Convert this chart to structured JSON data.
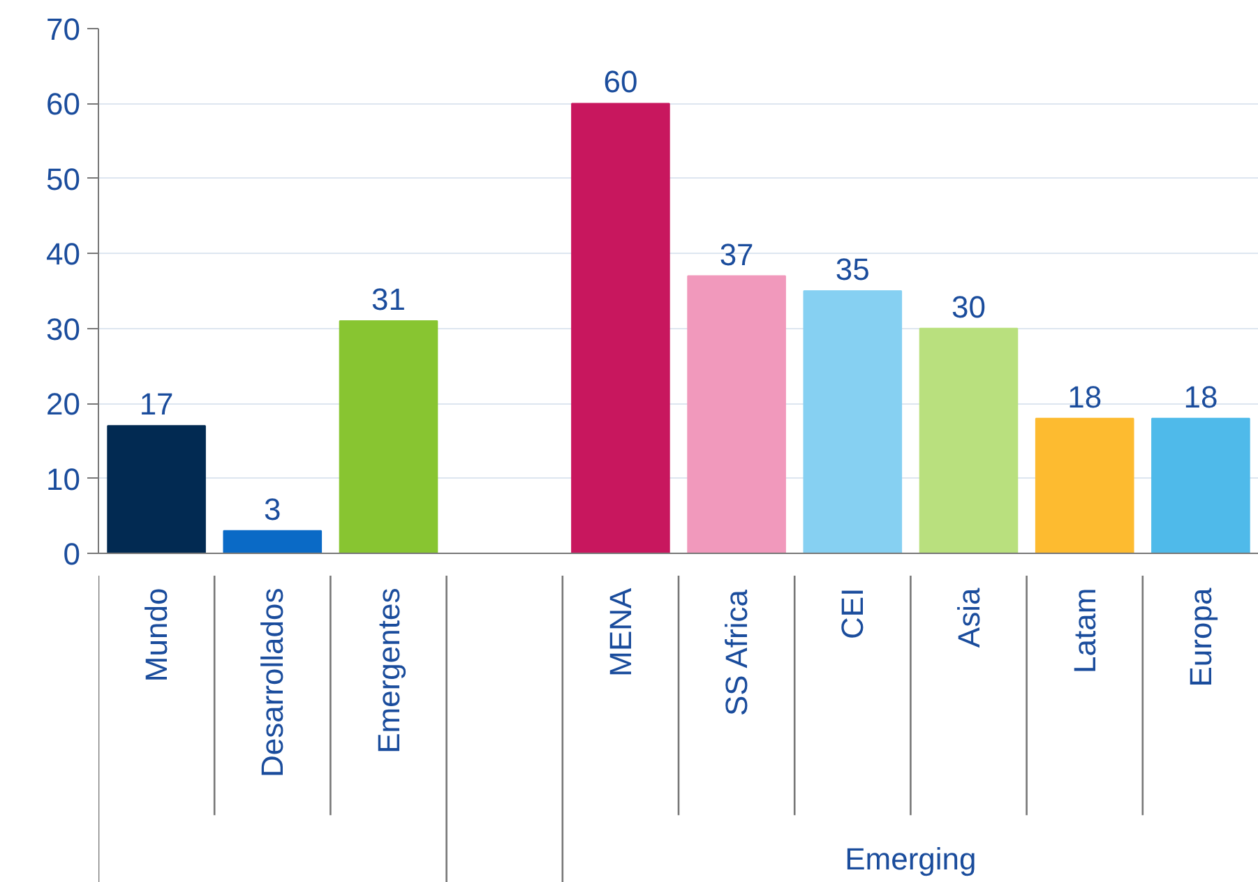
{
  "chart_data": {
    "type": "bar",
    "categories": [
      "Mundo",
      "Desarrollados",
      "Emergentes",
      null,
      "MENA",
      "SS Africa",
      "CEI",
      "Asia",
      "Latam",
      "Europa"
    ],
    "values": [
      17,
      3,
      31,
      null,
      60,
      37,
      35,
      30,
      18,
      18
    ],
    "colors": [
      "#022a52",
      "#0a6ac6",
      "#88c531",
      "#cccccc",
      "#c8175e",
      "#f199bc",
      "#86d0f2",
      "#b9e07e",
      "#fdbb30",
      "#4fbaea"
    ],
    "ylim": [
      0,
      70
    ],
    "yticks": [
      0,
      10,
      20,
      30,
      40,
      50,
      60,
      70
    ],
    "grid": "y",
    "data_labels": true,
    "annotations": [
      "Emerging"
    ]
  }
}
